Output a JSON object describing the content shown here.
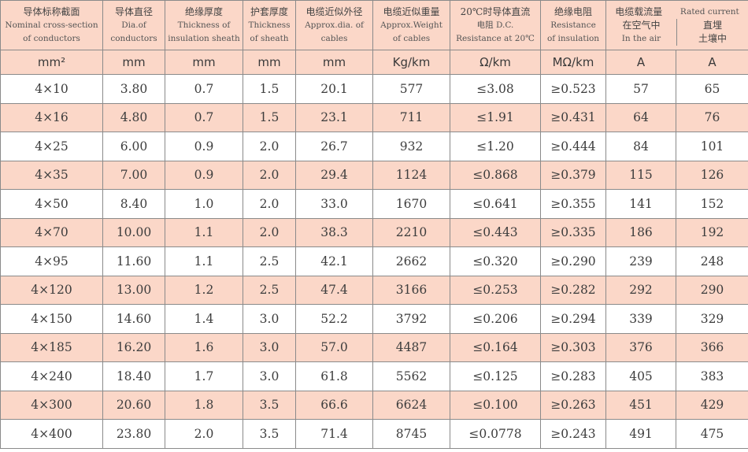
{
  "headers": [
    {
      "zh": "导体标称截面",
      "en1": "Nominal cross-section",
      "en2": "of conductors"
    },
    {
      "zh": "导体直径",
      "en1": "Dia.of",
      "en2": "conductors"
    },
    {
      "zh": "绝缘厚度",
      "en1": "Thickness of",
      "en2": "insulation sheath"
    },
    {
      "zh": "护套厚度",
      "en1": "Thickness",
      "en2": "of sheath"
    },
    {
      "zh": "电缆近似外径",
      "en1": "Approx.dia. of",
      "en2": "cables"
    },
    {
      "zh": "电缆近似重量",
      "en1": "Approx.Weight",
      "en2": "of cables"
    },
    {
      "zh": "20℃时导体直流",
      "en1": "电阻 D.C.",
      "en2": "Resistance at 20℃"
    },
    {
      "zh": "绝缘电阻",
      "en1": "Resistance",
      "en2": "of insulation"
    },
    {
      "zh": "电缆载流量",
      "en": "Rated current",
      "air_zh": "在空气中",
      "air_en": "In the air",
      "soil_zh": "直埋",
      "soil_en": "土壤中"
    }
  ],
  "units": [
    "mm²",
    "mm",
    "mm",
    "mm",
    "mm",
    "Kg/km",
    "Ω/km",
    "MΩ/km",
    "A",
    "A"
  ],
  "rows": [
    [
      "4×10",
      "3.80",
      "0.7",
      "1.5",
      "20.1",
      "577",
      "≤3.08",
      "≥0.523",
      "57",
      "65"
    ],
    [
      "4×16",
      "4.80",
      "0.7",
      "1.5",
      "23.1",
      "711",
      "≤1.91",
      "≥0.431",
      "64",
      "76"
    ],
    [
      "4×25",
      "6.00",
      "0.9",
      "2.0",
      "26.7",
      "932",
      "≤1.20",
      "≥0.444",
      "84",
      "101"
    ],
    [
      "4×35",
      "7.00",
      "0.9",
      "2.0",
      "29.4",
      "1124",
      "≤0.868",
      "≥0.379",
      "115",
      "126"
    ],
    [
      "4×50",
      "8.40",
      "1.0",
      "2.0",
      "33.0",
      "1670",
      "≤0.641",
      "≥0.355",
      "141",
      "152"
    ],
    [
      "4×70",
      "10.00",
      "1.1",
      "2.0",
      "38.3",
      "2210",
      "≤0.443",
      "≥0.335",
      "186",
      "192"
    ],
    [
      "4×95",
      "11.60",
      "1.1",
      "2.5",
      "42.1",
      "2662",
      "≤0.320",
      "≥0.290",
      "239",
      "248"
    ],
    [
      "4×120",
      "13.00",
      "1.2",
      "2.5",
      "47.4",
      "3166",
      "≤0.253",
      "≥0.282",
      "292",
      "290"
    ],
    [
      "4×150",
      "14.60",
      "1.4",
      "3.0",
      "52.2",
      "3792",
      "≤0.206",
      "≥0.294",
      "339",
      "329"
    ],
    [
      "4×185",
      "16.20",
      "1.6",
      "3.0",
      "57.0",
      "4487",
      "≤0.164",
      "≥0.303",
      "376",
      "366"
    ],
    [
      "4×240",
      "18.40",
      "1.7",
      "3.0",
      "61.8",
      "5562",
      "≤0.125",
      "≥0.283",
      "405",
      "383"
    ],
    [
      "4×300",
      "20.60",
      "1.8",
      "3.5",
      "66.6",
      "6624",
      "≤0.100",
      "≥0.263",
      "451",
      "429"
    ],
    [
      "4×400",
      "23.80",
      "2.0",
      "3.5",
      "71.4",
      "8745",
      "≤0.0778",
      "≥0.243",
      "491",
      "475"
    ]
  ]
}
